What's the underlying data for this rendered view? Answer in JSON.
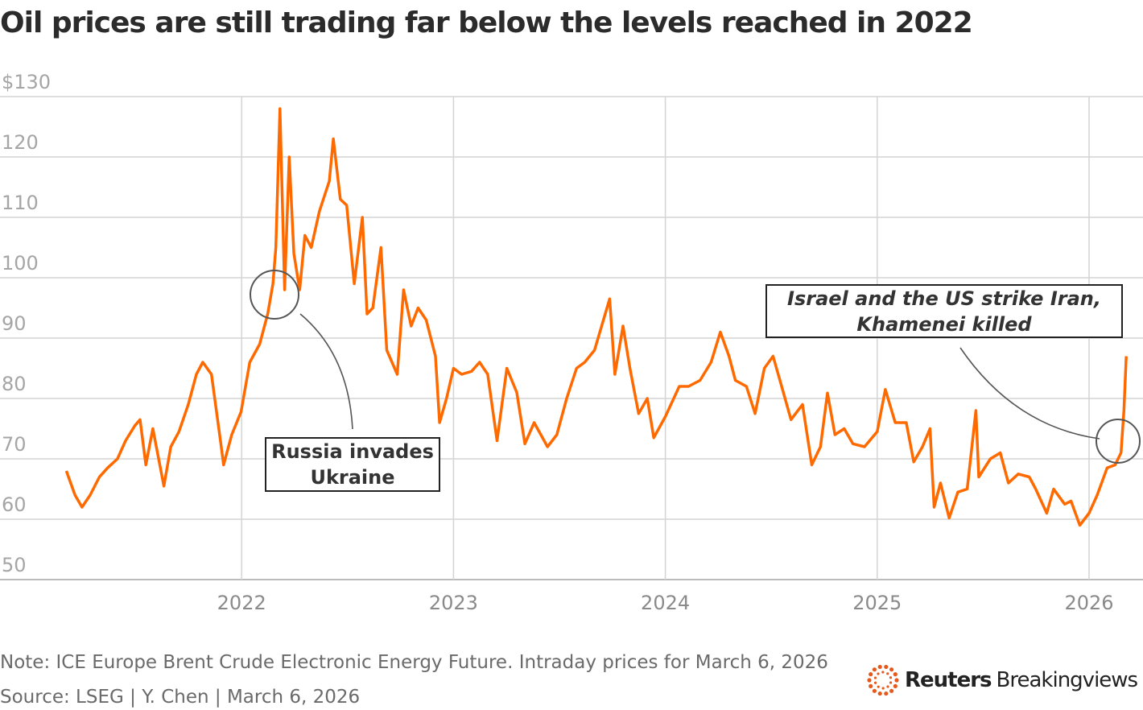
{
  "chart_data": {
    "type": "line",
    "title": "Oil prices are still trading far below the levels reached in 2022",
    "ylim": [
      50,
      130
    ],
    "yticks": [
      "$130",
      "120",
      "110",
      "100",
      "90",
      "80",
      "70",
      "60",
      "50"
    ],
    "ytick_values": [
      130,
      120,
      110,
      100,
      90,
      80,
      70,
      60,
      50
    ],
    "xticks": [
      "2022",
      "2023",
      "2024",
      "2025",
      "2026"
    ],
    "grid": true,
    "color": "#ff6a00",
    "points": [
      [
        "2021-03-05",
        68
      ],
      [
        "2021-03-20",
        64
      ],
      [
        "2021-04-01",
        62
      ],
      [
        "2021-04-15",
        64
      ],
      [
        "2021-05-01",
        67
      ],
      [
        "2021-05-15",
        68.5
      ],
      [
        "2021-06-01",
        70
      ],
      [
        "2021-06-15",
        73
      ],
      [
        "2021-07-01",
        75.5
      ],
      [
        "2021-07-10",
        76.5
      ],
      [
        "2021-07-20",
        69
      ],
      [
        "2021-08-01",
        75
      ],
      [
        "2021-08-20",
        65.5
      ],
      [
        "2021-09-01",
        72
      ],
      [
        "2021-09-15",
        74.5
      ],
      [
        "2021-10-01",
        79
      ],
      [
        "2021-10-15",
        84
      ],
      [
        "2021-10-26",
        86
      ],
      [
        "2021-11-10",
        84
      ],
      [
        "2021-11-26",
        72.7
      ],
      [
        "2021-12-01",
        69
      ],
      [
        "2021-12-15",
        74
      ],
      [
        "2021-12-31",
        77.8
      ],
      [
        "2022-01-15",
        86
      ],
      [
        "2022-02-01",
        89
      ],
      [
        "2022-02-15",
        94
      ],
      [
        "2022-02-24",
        99
      ],
      [
        "2022-03-01",
        105
      ],
      [
        "2022-03-08",
        128
      ],
      [
        "2022-03-16",
        98
      ],
      [
        "2022-03-24",
        120
      ],
      [
        "2022-04-01",
        104
      ],
      [
        "2022-04-11",
        98
      ],
      [
        "2022-04-20",
        107
      ],
      [
        "2022-05-01",
        105
      ],
      [
        "2022-05-15",
        111
      ],
      [
        "2022-06-01",
        116
      ],
      [
        "2022-06-08",
        123
      ],
      [
        "2022-06-20",
        113
      ],
      [
        "2022-07-01",
        112
      ],
      [
        "2022-07-14",
        99
      ],
      [
        "2022-07-28",
        110
      ],
      [
        "2022-08-05",
        94
      ],
      [
        "2022-08-15",
        95
      ],
      [
        "2022-08-29",
        105
      ],
      [
        "2022-09-08",
        88
      ],
      [
        "2022-09-26",
        84
      ],
      [
        "2022-10-07",
        98
      ],
      [
        "2022-10-20",
        92
      ],
      [
        "2022-11-01",
        95
      ],
      [
        "2022-11-15",
        93
      ],
      [
        "2022-12-01",
        87
      ],
      [
        "2022-12-08",
        76
      ],
      [
        "2022-12-20",
        80
      ],
      [
        "2023-01-01",
        85
      ],
      [
        "2023-01-15",
        84
      ],
      [
        "2023-02-01",
        84.5
      ],
      [
        "2023-02-15",
        86
      ],
      [
        "2023-03-01",
        84
      ],
      [
        "2023-03-17",
        73
      ],
      [
        "2023-04-03",
        85
      ],
      [
        "2023-04-20",
        81
      ],
      [
        "2023-05-04",
        72.5
      ],
      [
        "2023-05-20",
        76
      ],
      [
        "2023-06-12",
        72
      ],
      [
        "2023-06-28",
        74
      ],
      [
        "2023-07-15",
        80
      ],
      [
        "2023-08-01",
        85
      ],
      [
        "2023-08-15",
        86
      ],
      [
        "2023-09-01",
        88
      ],
      [
        "2023-09-27",
        96.5
      ],
      [
        "2023-10-06",
        84
      ],
      [
        "2023-10-20",
        92
      ],
      [
        "2023-11-01",
        85
      ],
      [
        "2023-11-16",
        77.5
      ],
      [
        "2023-12-01",
        80
      ],
      [
        "2023-12-12",
        73.5
      ],
      [
        "2024-01-01",
        77
      ],
      [
        "2024-01-25",
        82
      ],
      [
        "2024-02-10",
        82
      ],
      [
        "2024-03-01",
        83
      ],
      [
        "2024-03-20",
        86
      ],
      [
        "2024-04-05",
        91
      ],
      [
        "2024-04-20",
        87
      ],
      [
        "2024-05-01",
        83
      ],
      [
        "2024-05-20",
        82
      ],
      [
        "2024-06-04",
        77.5
      ],
      [
        "2024-06-20",
        85
      ],
      [
        "2024-07-05",
        87
      ],
      [
        "2024-07-20",
        82
      ],
      [
        "2024-08-05",
        76.5
      ],
      [
        "2024-08-25",
        79
      ],
      [
        "2024-09-10",
        69
      ],
      [
        "2024-09-25",
        72
      ],
      [
        "2024-10-07",
        80.9
      ],
      [
        "2024-10-20",
        74
      ],
      [
        "2024-11-05",
        75
      ],
      [
        "2024-11-20",
        72.5
      ],
      [
        "2024-12-10",
        72
      ],
      [
        "2025-01-01",
        74.5
      ],
      [
        "2025-01-15",
        81.5
      ],
      [
        "2025-02-01",
        76
      ],
      [
        "2025-02-20",
        76
      ],
      [
        "2025-03-05",
        69.5
      ],
      [
        "2025-03-20",
        72
      ],
      [
        "2025-04-02",
        75
      ],
      [
        "2025-04-09",
        62
      ],
      [
        "2025-04-20",
        66
      ],
      [
        "2025-05-05",
        60.2
      ],
      [
        "2025-05-20",
        64.5
      ],
      [
        "2025-06-05",
        65
      ],
      [
        "2025-06-20",
        78
      ],
      [
        "2025-06-25",
        67
      ],
      [
        "2025-07-15",
        70
      ],
      [
        "2025-08-01",
        71
      ],
      [
        "2025-08-15",
        66
      ],
      [
        "2025-09-01",
        67.5
      ],
      [
        "2025-09-20",
        67
      ],
      [
        "2025-10-01",
        65
      ],
      [
        "2025-10-20",
        61
      ],
      [
        "2025-11-01",
        65
      ],
      [
        "2025-11-20",
        62.5
      ],
      [
        "2025-12-01",
        63
      ],
      [
        "2025-12-16",
        59
      ],
      [
        "2026-01-01",
        61
      ],
      [
        "2026-01-15",
        64
      ],
      [
        "2026-02-01",
        68.5
      ],
      [
        "2026-02-15",
        69
      ],
      [
        "2026-02-25",
        71
      ],
      [
        "2026-03-02",
        78
      ],
      [
        "2026-03-06",
        87
      ]
    ],
    "annotations": [
      {
        "text": "Russia invades Ukraine",
        "date": "2022-02-24",
        "value": 96
      },
      {
        "text": "Israel and the US strike Iran, Khamenei killed",
        "date": "2026-03-01",
        "value": 71
      }
    ]
  },
  "annotation_1": "Russia invades Ukraine",
  "annotation_2": "Israel and the US strike Iran, Khamenei killed",
  "note": "Note: ICE Europe Brent Crude Electronic Energy Future. Intraday prices for March 6, 2026",
  "source": "Source: LSEG | Y. Chen | March 6, 2026",
  "logo": {
    "brand": "Reuters",
    "sub": "Breakingviews"
  }
}
